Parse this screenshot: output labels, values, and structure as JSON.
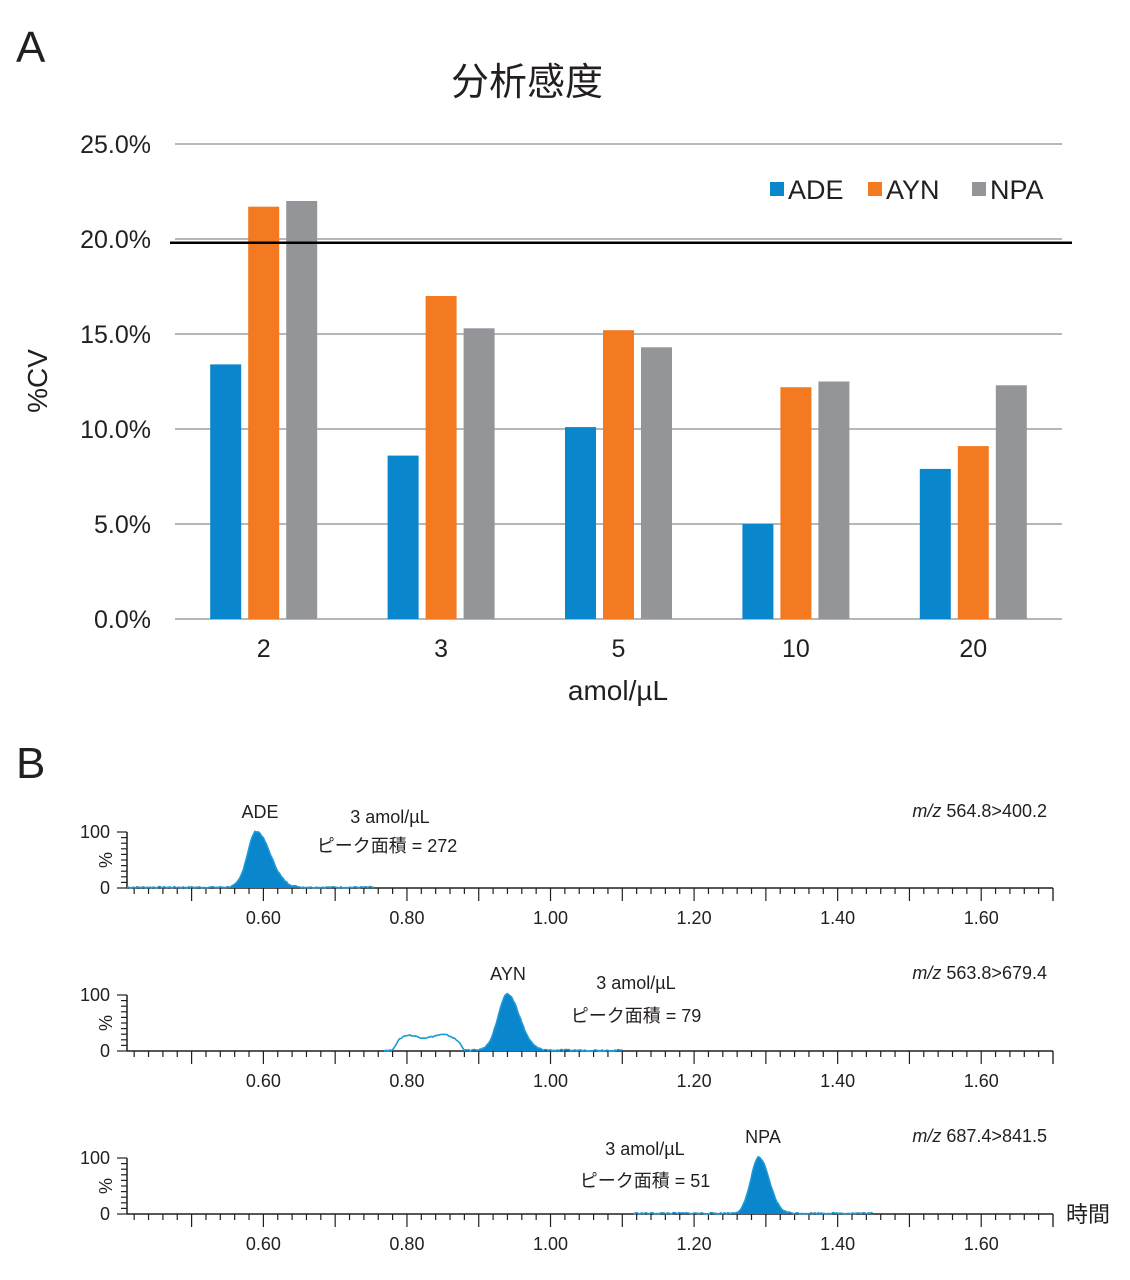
{
  "panels": {
    "a_label": "A",
    "b_label": "B"
  },
  "chart_data": [
    {
      "type": "bar",
      "title": "分析感度",
      "xlabel": "amol/µL",
      "ylabel": "%CV",
      "categories": [
        "2",
        "3",
        "5",
        "10",
        "20"
      ],
      "ylim": [
        0,
        25
      ],
      "yticks": [
        "0.0%",
        "5.0%",
        "10.0%",
        "15.0%",
        "20.0%",
        "25.0%"
      ],
      "ytick_values": [
        0,
        5,
        10,
        15,
        20,
        25
      ],
      "grid": true,
      "legend_position": "top-right",
      "reference_line": {
        "value": 19.8,
        "color": "#000000"
      },
      "series": [
        {
          "name": "ADE",
          "color": "#0a86cd",
          "values": [
            13.4,
            8.6,
            10.1,
            5.0,
            7.9
          ]
        },
        {
          "name": "AYN",
          "color": "#f37a21",
          "values": [
            21.7,
            17.0,
            15.2,
            12.2,
            9.1
          ]
        },
        {
          "name": "NPA",
          "color": "#939598",
          "values": [
            22.0,
            15.3,
            14.3,
            12.5,
            12.3
          ]
        }
      ]
    },
    {
      "type": "line",
      "subtype": "chromatogram",
      "xlim": [
        0.41,
        1.7
      ],
      "xticks": [
        "0.60",
        "0.80",
        "1.00",
        "1.20",
        "1.40",
        "1.60"
      ],
      "xtick_values": [
        0.6,
        0.8,
        1.0,
        1.2,
        1.4,
        1.6
      ],
      "xlabel": "時間",
      "ylabel": "%",
      "ylim": [
        0,
        100
      ],
      "yticks": [
        "0",
        "100"
      ],
      "trace_color": "#0a86cd",
      "series": [
        {
          "name": "ADE",
          "concentration": "3 amol/µL",
          "area_label": "ピーク面積 = 272",
          "mz_prefix": "m/z",
          "mz": "564.8>400.2",
          "trace_range": [
            0.41,
            0.755
          ],
          "peak_center": 0.59,
          "peak_width": 0.012,
          "peak_height": 100,
          "tail": 0.6,
          "hump": null
        },
        {
          "name": "AYN",
          "concentration": "3 amol/µL",
          "area_label": "ピーク面積 = 79",
          "mz_prefix": "m/z",
          "mz": "563.8>679.4",
          "trace_range": [
            0.768,
            1.1
          ],
          "peak_center": 0.94,
          "peak_width": 0.013,
          "peak_height": 100,
          "tail": 0.3,
          "hump": {
            "start": 0.78,
            "end": 0.88,
            "height": 28
          }
        },
        {
          "name": "NPA",
          "concentration": "3 amol/µL",
          "area_label": "ピーク面積 = 51",
          "mz_prefix": "m/z",
          "mz": "687.4>841.5",
          "trace_range": [
            1.115,
            1.45
          ],
          "peak_center": 1.29,
          "peak_width": 0.011,
          "peak_height": 100,
          "tail": 0.3,
          "hump": null
        }
      ]
    }
  ]
}
